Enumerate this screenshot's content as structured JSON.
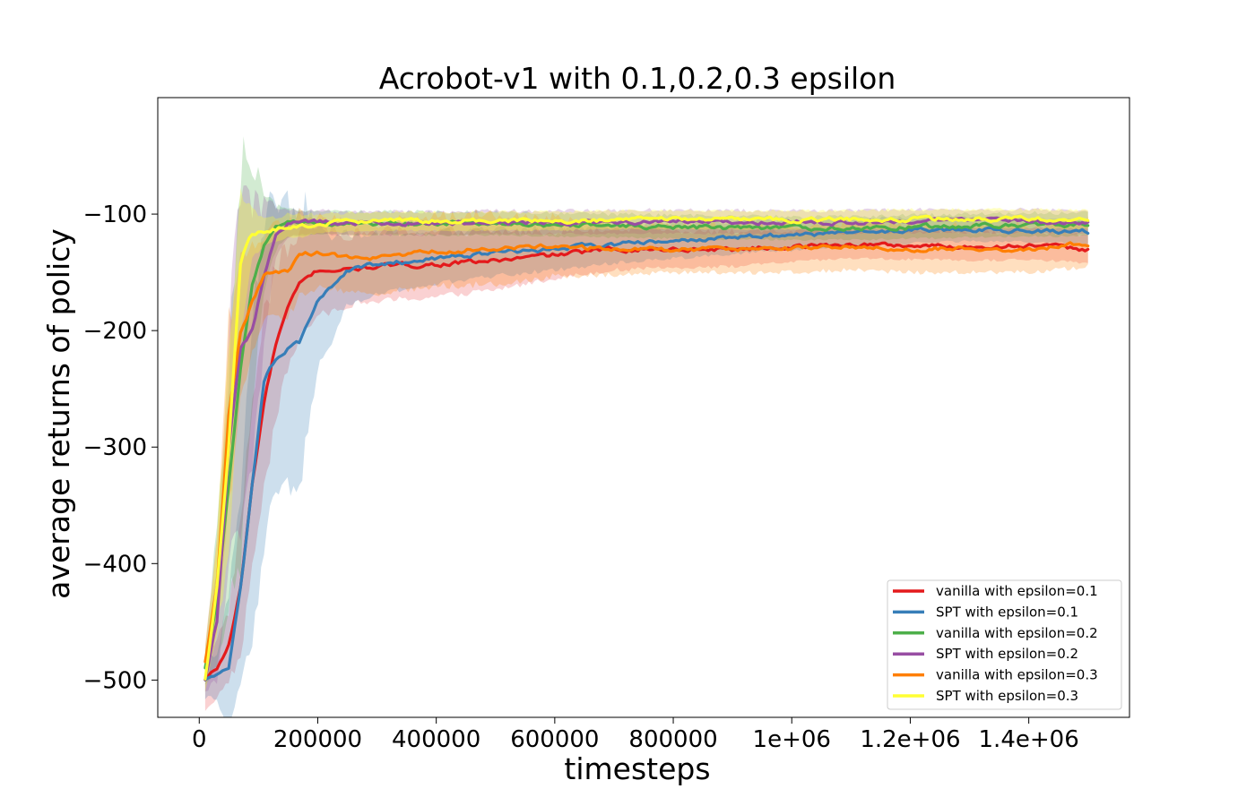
{
  "chart_data": {
    "type": "line",
    "title": "Acrobot-v1 with 0.1,0.2,0.3 epsilon",
    "xlabel": "timesteps",
    "ylabel": "average returns of policy",
    "xlim": [
      -70000,
      1570000
    ],
    "ylim": [
      -532,
      0
    ],
    "x_ticks": [
      0,
      200000,
      400000,
      600000,
      800000,
      1000000,
      1200000,
      1400000
    ],
    "x_tick_labels": [
      "0",
      "200000",
      "400000",
      "600000",
      "800000",
      "1e+06",
      "1.2e+06",
      "1.4e+06"
    ],
    "y_ticks": [
      -500,
      -400,
      -300,
      -200,
      -100
    ],
    "y_tick_labels": [
      "−500",
      "−400",
      "−300",
      "−200",
      "−100"
    ],
    "grid": false,
    "legend_position": "lower-right",
    "x_range": [
      10000,
      1500000
    ],
    "series": [
      {
        "name": "vanilla with epsilon=0.1",
        "color": "#e41a1c",
        "band_opacity": 0.2,
        "x": [
          10000,
          30000,
          50000,
          70000,
          90000,
          110000,
          130000,
          150000,
          170000,
          200000,
          250000,
          300000,
          400000,
          500000,
          600000,
          700000,
          800000,
          900000,
          1000000,
          1100000,
          1200000,
          1300000,
          1400000,
          1500000
        ],
        "values": [
          -500,
          -490,
          -470,
          -420,
          -330,
          -260,
          -210,
          -180,
          -160,
          -148,
          -148,
          -145,
          -143,
          -140,
          -135,
          -130,
          -130,
          -130,
          -128,
          -126,
          -127,
          -128,
          -127,
          -130
        ],
        "band": [
          25,
          25,
          30,
          60,
          70,
          75,
          65,
          50,
          45,
          40,
          30,
          30,
          28,
          25,
          20,
          18,
          16,
          15,
          13,
          12,
          12,
          12,
          12,
          12
        ]
      },
      {
        "name": "SPT with epsilon=0.1",
        "color": "#377eb8",
        "band_opacity": 0.25,
        "x": [
          10000,
          30000,
          50000,
          70000,
          90000,
          110000,
          130000,
          150000,
          170000,
          200000,
          250000,
          300000,
          400000,
          500000,
          600000,
          700000,
          800000,
          900000,
          1000000,
          1100000,
          1200000,
          1300000,
          1400000,
          1500000
        ],
        "values": [
          -500,
          -495,
          -490,
          -420,
          -330,
          -240,
          -225,
          -215,
          -210,
          -175,
          -148,
          -143,
          -138,
          -133,
          -130,
          -126,
          -123,
          -120,
          -118,
          -116,
          -114,
          -113,
          -114,
          -115
        ],
        "band": [
          15,
          20,
          60,
          80,
          140,
          140,
          120,
          120,
          120,
          60,
          30,
          26,
          22,
          20,
          18,
          16,
          15,
          14,
          13,
          12,
          11,
          10,
          10,
          10
        ]
      },
      {
        "name": "vanilla with epsilon=0.2",
        "color": "#4daf4a",
        "band_opacity": 0.25,
        "x": [
          10000,
          30000,
          50000,
          70000,
          90000,
          110000,
          130000,
          150000,
          170000,
          200000,
          250000,
          300000,
          400000,
          500000,
          600000,
          700000,
          800000,
          900000,
          1000000,
          1100000,
          1200000,
          1300000,
          1400000,
          1500000
        ],
        "values": [
          -490,
          -430,
          -330,
          -230,
          -160,
          -125,
          -112,
          -108,
          -107,
          -107,
          -108,
          -108,
          -108,
          -108,
          -109,
          -110,
          -111,
          -112,
          -112,
          -112,
          -111,
          -110,
          -109,
          -109
        ],
        "band": [
          15,
          60,
          100,
          170,
          100,
          40,
          18,
          12,
          11,
          10,
          10,
          10,
          10,
          10,
          10,
          10,
          10,
          10,
          10,
          10,
          10,
          10,
          10,
          10
        ]
      },
      {
        "name": "SPT with epsilon=0.2",
        "color": "#984ea3",
        "band_opacity": 0.25,
        "x": [
          10000,
          30000,
          50000,
          70000,
          90000,
          110000,
          130000,
          150000,
          170000,
          200000,
          250000,
          300000,
          400000,
          500000,
          600000,
          700000,
          800000,
          900000,
          1000000,
          1100000,
          1200000,
          1300000,
          1400000,
          1500000
        ],
        "values": [
          -500,
          -450,
          -300,
          -215,
          -200,
          -150,
          -115,
          -108,
          -107,
          -107,
          -108,
          -108,
          -108,
          -107,
          -107,
          -107,
          -106,
          -107,
          -107,
          -107,
          -106,
          -106,
          -106,
          -107
        ],
        "band": [
          10,
          50,
          100,
          150,
          110,
          60,
          20,
          12,
          10,
          10,
          10,
          10,
          10,
          10,
          10,
          10,
          10,
          10,
          10,
          10,
          10,
          10,
          10,
          10
        ]
      },
      {
        "name": "vanilla with epsilon=0.3",
        "color": "#ff7f00",
        "band_opacity": 0.25,
        "x": [
          10000,
          30000,
          50000,
          70000,
          90000,
          110000,
          130000,
          150000,
          170000,
          200000,
          250000,
          300000,
          400000,
          500000,
          600000,
          700000,
          800000,
          900000,
          1000000,
          1100000,
          1200000,
          1300000,
          1400000,
          1500000
        ],
        "values": [
          -485,
          -420,
          -270,
          -200,
          -175,
          -152,
          -150,
          -148,
          -135,
          -133,
          -137,
          -138,
          -132,
          -130,
          -128,
          -130,
          -130,
          -130,
          -130,
          -128,
          -130,
          -130,
          -130,
          -125
        ],
        "band": [
          15,
          40,
          80,
          60,
          45,
          35,
          40,
          40,
          35,
          30,
          30,
          30,
          30,
          30,
          25,
          22,
          20,
          20,
          20,
          20,
          20,
          20,
          20,
          20
        ]
      },
      {
        "name": "SPT with epsilon=0.3",
        "color": "#ffff33",
        "band_opacity": 0.3,
        "x": [
          10000,
          30000,
          50000,
          70000,
          90000,
          110000,
          130000,
          150000,
          170000,
          200000,
          250000,
          300000,
          400000,
          500000,
          600000,
          700000,
          800000,
          900000,
          1000000,
          1100000,
          1200000,
          1300000,
          1400000,
          1500000
        ],
        "values": [
          -500,
          -420,
          -300,
          -140,
          -117,
          -115,
          -113,
          -110,
          -110,
          -108,
          -107,
          -106,
          -106,
          -106,
          -106,
          -105,
          -105,
          -105,
          -105,
          -105,
          -104,
          -104,
          -104,
          -105
        ],
        "band": [
          10,
          40,
          90,
          60,
          20,
          12,
          10,
          10,
          10,
          8,
          8,
          8,
          8,
          8,
          8,
          8,
          8,
          8,
          8,
          8,
          8,
          8,
          8,
          8
        ]
      }
    ]
  }
}
